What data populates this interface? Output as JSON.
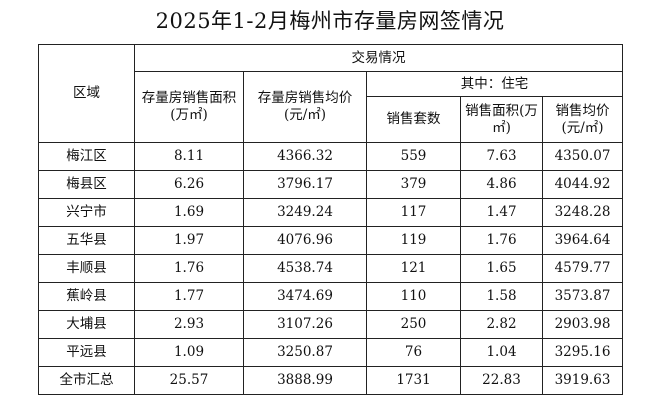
{
  "title": "2025年1-2月梅州市存量房网签情况",
  "header": {
    "region": "区域",
    "trading": "交易情况",
    "of_which": "其中：住宅",
    "area": "存量房销售面积(万㎡)",
    "avg_price": "存量房销售均价(元/㎡)",
    "units": "销售套数",
    "res_area": "销售面积(万㎡)",
    "res_avg_price": "销售均价(元/㎡)"
  },
  "rows": [
    {
      "region": "梅江区",
      "area": "8.11",
      "avg_price": "4366.32",
      "units": "559",
      "res_area": "7.63",
      "res_avg_price": "4350.07"
    },
    {
      "region": "梅县区",
      "area": "6.26",
      "avg_price": "3796.17",
      "units": "379",
      "res_area": "4.86",
      "res_avg_price": "4044.92"
    },
    {
      "region": "兴宁市",
      "area": "1.69",
      "avg_price": "3249.24",
      "units": "117",
      "res_area": "1.47",
      "res_avg_price": "3248.28"
    },
    {
      "region": "五华县",
      "area": "1.97",
      "avg_price": "4076.96",
      "units": "119",
      "res_area": "1.76",
      "res_avg_price": "3964.64"
    },
    {
      "region": "丰顺县",
      "area": "1.76",
      "avg_price": "4538.74",
      "units": "121",
      "res_area": "1.65",
      "res_avg_price": "4579.77"
    },
    {
      "region": "蕉岭县",
      "area": "1.77",
      "avg_price": "3474.69",
      "units": "110",
      "res_area": "1.58",
      "res_avg_price": "3573.87"
    },
    {
      "region": "大埔县",
      "area": "2.93",
      "avg_price": "3107.26",
      "units": "250",
      "res_area": "2.82",
      "res_avg_price": "2903.98"
    },
    {
      "region": "平远县",
      "area": "1.09",
      "avg_price": "3250.87",
      "units": "76",
      "res_area": "1.04",
      "res_avg_price": "3295.16"
    },
    {
      "region": "全市汇总",
      "area": "25.57",
      "avg_price": "3888.99",
      "units": "1731",
      "res_area": "22.83",
      "res_avg_price": "3919.63"
    }
  ]
}
